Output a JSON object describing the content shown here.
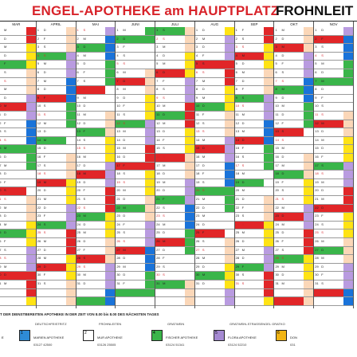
{
  "header": {
    "title": "ENGEL-APOTHEKE am HAUPTPLATZ",
    "title_right": "FROHNLEIT"
  },
  "calendar": {
    "months": [
      "MAR",
      "APRIL",
      "MAI",
      "JUNI",
      "JULI",
      "AUG",
      "SEP",
      "OKT",
      "NOV"
    ],
    "weekdays": [
      "S",
      "M",
      "D",
      "M",
      "D",
      "F",
      "S"
    ],
    "duty_colors": {
      "marien": "#2e8bd6",
      "mur": "#ffffff",
      "fischer": "#3ab54a",
      "flora": "#a58ad2",
      "don": "#f2b514",
      "red": "#e12628",
      "yellow": "#ffe314",
      "peach": "#fbd7b8",
      "lilac": "#b99be0",
      "blue": "#1a73d9"
    }
  },
  "legend": {
    "text": "T DER DIENSTBEREITEN APOTHEKE IN DER ZEIT VON 8.00 bis 8.00 DES NÄCHSTEN TAGES",
    "items": [
      {
        "loc": "DEUTSCHFEISTRITZ",
        "num": "1",
        "name": "MARIEN APOTHEKE",
        "phone": "03127 42500",
        "color": "#2e8bd6"
      },
      {
        "loc": "FROHNLEITEN",
        "num": "2",
        "name": "MUR APOTHEKE",
        "phone": "03126 25505",
        "color": "#ffffff"
      },
      {
        "loc": "GRATWEIN",
        "num": "4",
        "name": "FISCHER APOTHEKE",
        "phone": "03124 51341",
        "color": "#3ab54a"
      },
      {
        "loc": "GRATWEIN-STRASSENGEL GRATKO",
        "num": "5",
        "name": "FLORA APOTHEKE",
        "phone": "03124 52210",
        "color": "#a58ad2"
      },
      {
        "loc": "",
        "num": "6",
        "name": "DON",
        "phone": "031",
        "color": "#f2b514"
      }
    ],
    "left_char": "E"
  }
}
